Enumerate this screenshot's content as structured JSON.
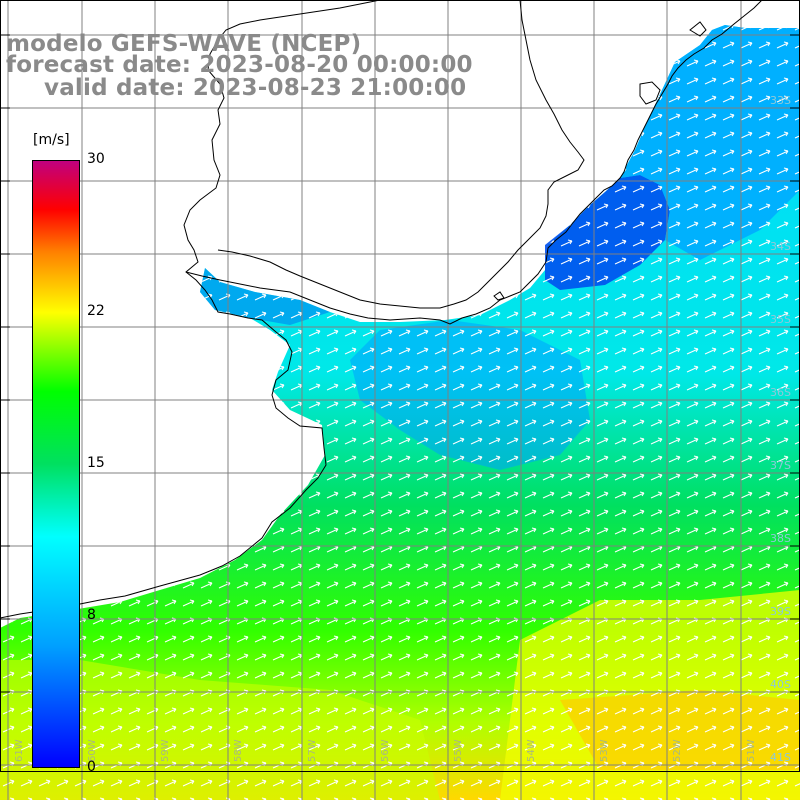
{
  "title": {
    "line1": "modelo GEFS-WAVE (NCEP)",
    "line2": "forecast date: 2023-08-20 00:00:00",
    "line3": "valid date: 2023-08-23 21:00:00"
  },
  "colorbar": {
    "unit": "[m/s]",
    "ticks": [
      "30",
      "22",
      "15",
      "8",
      "0"
    ],
    "colors": [
      "#0000ff",
      "#00a0ff",
      "#00ffff",
      "#00e060",
      "#00ff00",
      "#ffff00",
      "#ff8000",
      "#ff0000",
      "#c0007f"
    ]
  },
  "map": {
    "lat_labels": [
      "33S",
      "34S",
      "35S",
      "36S",
      "37S",
      "38S",
      "39S",
      "40S",
      "41S"
    ],
    "lon_labels": [
      "61W",
      "60W",
      "59W",
      "58W",
      "57W",
      "56W",
      "55W",
      "54W",
      "53W",
      "52W",
      "51W"
    ],
    "coastline_color": "#000000",
    "grid_color": "#808080"
  }
}
